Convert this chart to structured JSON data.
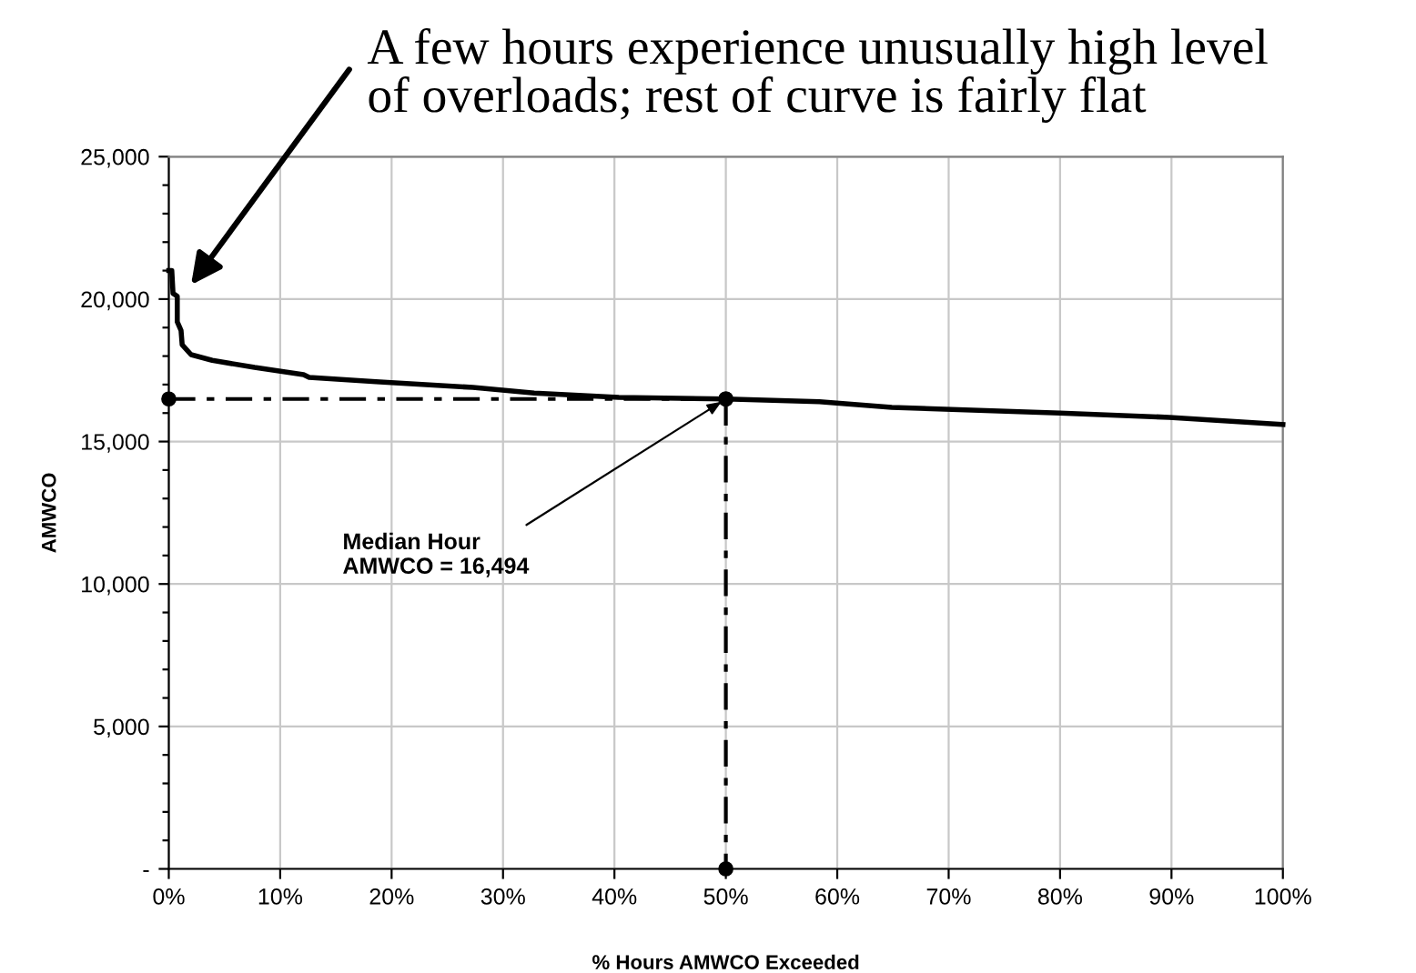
{
  "chart_data": {
    "type": "line",
    "xlabel": "% Hours AMWCO Exceeded",
    "ylabel": "AMWCO",
    "xlim": [
      0,
      100
    ],
    "ylim": [
      0,
      25000
    ],
    "xticks": [
      {
        "value": 0,
        "label": "0%"
      },
      {
        "value": 10,
        "label": "10%"
      },
      {
        "value": 20,
        "label": "20%"
      },
      {
        "value": 30,
        "label": "30%"
      },
      {
        "value": 40,
        "label": "40%"
      },
      {
        "value": 50,
        "label": "50%"
      },
      {
        "value": 60,
        "label": "60%"
      },
      {
        "value": 70,
        "label": "70%"
      },
      {
        "value": 80,
        "label": "80%"
      },
      {
        "value": 90,
        "label": "90%"
      },
      {
        "value": 100,
        "label": "100%"
      }
    ],
    "yticks": [
      {
        "value": 0,
        "label": "-"
      },
      {
        "value": 1000,
        "label": null
      },
      {
        "value": 2000,
        "label": null
      },
      {
        "value": 3000,
        "label": null
      },
      {
        "value": 4000,
        "label": null
      },
      {
        "value": 5000,
        "label": "5,000"
      },
      {
        "value": 6000,
        "label": null
      },
      {
        "value": 7000,
        "label": null
      },
      {
        "value": 8000,
        "label": null
      },
      {
        "value": 9000,
        "label": null
      },
      {
        "value": 10000,
        "label": "10,000"
      },
      {
        "value": 11000,
        "label": null
      },
      {
        "value": 12000,
        "label": null
      },
      {
        "value": 13000,
        "label": null
      },
      {
        "value": 14000,
        "label": null
      },
      {
        "value": 15000,
        "label": "15,000"
      },
      {
        "value": 16000,
        "label": null
      },
      {
        "value": 17000,
        "label": null
      },
      {
        "value": 18000,
        "label": null
      },
      {
        "value": 19000,
        "label": null
      },
      {
        "value": 20000,
        "label": "20,000"
      },
      {
        "value": 21000,
        "label": null
      },
      {
        "value": 22000,
        "label": null
      },
      {
        "value": 23000,
        "label": null
      },
      {
        "value": 24000,
        "label": null
      },
      {
        "value": 25000,
        "label": "25,000"
      }
    ],
    "grid": true,
    "series": [
      {
        "color": "#000000",
        "line_style": "solid",
        "marker": "none",
        "x": [
          0,
          0.27,
          0.38,
          0.76,
          0.76,
          1.1,
          1.2,
          2.0,
          3.9,
          7.7,
          12.1,
          12.6,
          18.6,
          27.3,
          32.8,
          40.4,
          50,
          58.4,
          64.9,
          80,
          89.8,
          100
        ],
        "values": [
          21000,
          21000,
          20200,
          20100,
          19200,
          18900,
          18400,
          18050,
          17850,
          17600,
          17350,
          17250,
          17100,
          16900,
          16700,
          16550,
          16494,
          16400,
          16200,
          16000,
          15850,
          15600
        ]
      },
      {
        "color": "#000000",
        "line_style": "dashed",
        "marker": "circle",
        "x": [
          0,
          50
        ],
        "values": [
          16494,
          16494
        ]
      },
      {
        "color": "#000000",
        "line_style": "dashed",
        "marker": "circle",
        "x": [
          50,
          50
        ],
        "values": [
          16494,
          0
        ]
      }
    ],
    "annotations": [
      "A few hours experience unusually high level\nof overloads; rest of curve is fairly flat",
      {
        "text": "Median Hour\nAMWCO = 16,494",
        "x": 50,
        "y": 16494
      }
    ]
  }
}
